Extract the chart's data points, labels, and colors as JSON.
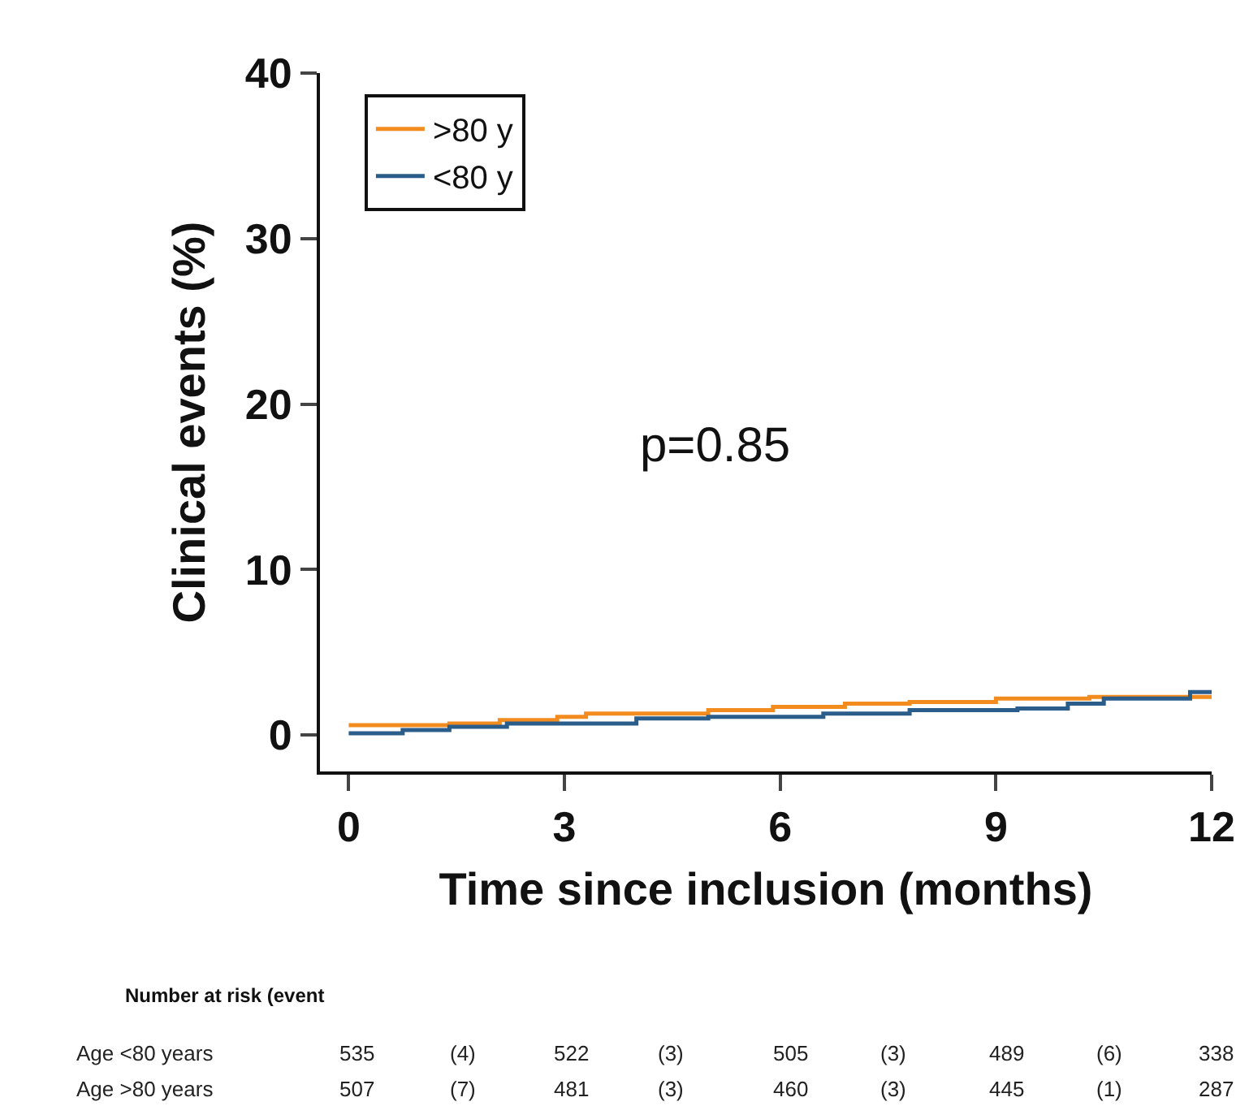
{
  "chart_data": {
    "type": "step",
    "xlabel": "Time since inclusion (months)",
    "ylabel": "Clinical events (%)",
    "xlim": [
      -0.4,
      12
    ],
    "xticks": [
      0,
      3,
      6,
      9,
      12
    ],
    "ylim": [
      -2.2,
      40
    ],
    "yticks": [
      0,
      10,
      20,
      30,
      40
    ],
    "grid": false,
    "legend": "top left",
    "marker": "none",
    "line_style": "solid",
    "series": [
      {
        "name": ">80 y",
        "color": "#f28c1e",
        "x": [
          0,
          1.4,
          2.1,
          2.9,
          3.3,
          5.0,
          5.9,
          6.9,
          7.8,
          9.0,
          10.3,
          12
        ],
        "values": [
          0.6,
          0.7,
          0.9,
          1.1,
          1.3,
          1.5,
          1.7,
          1.9,
          2.0,
          2.2,
          2.3,
          2.4
        ]
      },
      {
        "name": "<80 y",
        "color": "#2a5d8a",
        "x": [
          0,
          0.75,
          1.4,
          2.2,
          4.0,
          5.0,
          6.6,
          7.8,
          9.3,
          10.0,
          10.5,
          11.7,
          12
        ],
        "values": [
          0.1,
          0.3,
          0.5,
          0.7,
          1.0,
          1.1,
          1.3,
          1.5,
          1.6,
          1.9,
          2.2,
          2.6,
          2.7
        ]
      }
    ],
    "annotations": [
      "p=0.85",
      "Number at risk (event",
      "Age <80 years",
      "535",
      "(4)",
      "522",
      "(3)",
      "505",
      "(3)",
      "489",
      "(6)",
      "338",
      "Age >80 years",
      "507",
      "(7)",
      "481",
      "(3)",
      "460",
      "(3)",
      "445",
      "(1)",
      "287"
    ]
  }
}
